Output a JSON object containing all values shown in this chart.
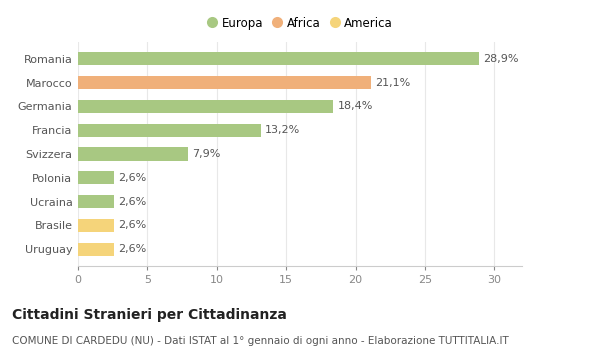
{
  "categories": [
    "Uruguay",
    "Brasile",
    "Ucraina",
    "Polonia",
    "Svizzera",
    "Francia",
    "Germania",
    "Marocco",
    "Romania"
  ],
  "values": [
    2.6,
    2.6,
    2.6,
    2.6,
    7.9,
    13.2,
    18.4,
    21.1,
    28.9
  ],
  "labels": [
    "2,6%",
    "2,6%",
    "2,6%",
    "2,6%",
    "7,9%",
    "13,2%",
    "18,4%",
    "21,1%",
    "28,9%"
  ],
  "colors": [
    "#f5d47a",
    "#f5d47a",
    "#a8c882",
    "#a8c882",
    "#a8c882",
    "#a8c882",
    "#a8c882",
    "#f0b07a",
    "#a8c882"
  ],
  "legend": [
    {
      "label": "Europa",
      "color": "#a8c882"
    },
    {
      "label": "Africa",
      "color": "#f0b07a"
    },
    {
      "label": "America",
      "color": "#f5d47a"
    }
  ],
  "title": "Cittadini Stranieri per Cittadinanza",
  "subtitle": "COMUNE DI CARDEDU (NU) - Dati ISTAT al 1° gennaio di ogni anno - Elaborazione TUTTITALIA.IT",
  "xlim": [
    0,
    32
  ],
  "xticks": [
    0,
    5,
    10,
    15,
    20,
    25,
    30
  ],
  "background_color": "#ffffff",
  "grid_color": "#e8e8e8",
  "bar_height": 0.55,
  "title_fontsize": 10,
  "subtitle_fontsize": 7.5,
  "label_fontsize": 8,
  "tick_fontsize": 8,
  "legend_fontsize": 8.5
}
